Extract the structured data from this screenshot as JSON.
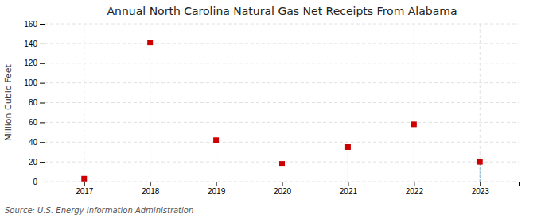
{
  "chart_data": {
    "type": "scatter",
    "title": "Annual North Carolina Natural Gas Net Receipts From Alabama",
    "y_label": "Million Cubic Feet",
    "source": "Source: U.S. Energy Information Administration",
    "x": [
      2017,
      2018,
      2019,
      2020,
      2021,
      2022,
      2023
    ],
    "values": [
      3,
      141,
      42,
      18,
      35,
      58,
      20
    ],
    "drop_lines": [
      2020,
      2021,
      2023
    ],
    "color": "#cc0000",
    "marker": "square",
    "xlim": [
      2016.4,
      2023.6
    ],
    "ylim": [
      0,
      160
    ],
    "xticks": [
      2017,
      2018,
      2019,
      2020,
      2021,
      2022,
      2023
    ],
    "yticks": [
      0,
      20,
      40,
      60,
      80,
      100,
      120,
      140,
      160
    ],
    "grid": true
  }
}
